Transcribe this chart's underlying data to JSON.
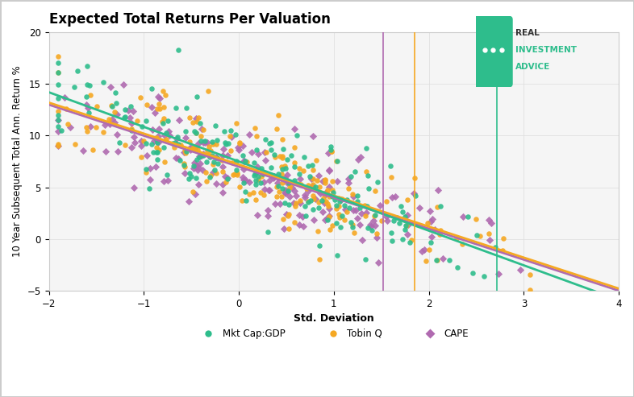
{
  "title": "Expected Total Returns Per Valuation",
  "xlabel": "Std. Deviation",
  "ylabel": "10 Year Subsequent Total Ann. Return %",
  "xlim": [
    -2,
    4
  ],
  "ylim": [
    -5,
    20
  ],
  "xticks": [
    -2,
    -1,
    0,
    1,
    2,
    3,
    4
  ],
  "yticks": [
    -5,
    0,
    5,
    10,
    15,
    20
  ],
  "color_green": "#2ebd8c",
  "color_orange": "#f5a822",
  "color_purple": "#b06ab0",
  "vline_orange": 1.85,
  "vline_purple": 1.52,
  "vline_green": 2.72,
  "trend_green_slope": -3.35,
  "trend_green_intercept": 7.5,
  "trend_orange_slope": -3.0,
  "trend_orange_intercept": 7.2,
  "trend_purple_slope": -3.0,
  "trend_purple_intercept": 7.0,
  "logo_color": "#2ebd8c",
  "background_color": "#ffffff",
  "plot_bg_color": "#f5f5f5",
  "legend_labels": [
    "Mkt Cap:GDP",
    "Tobin Q",
    "CAPE"
  ],
  "border_color": "#cccccc"
}
